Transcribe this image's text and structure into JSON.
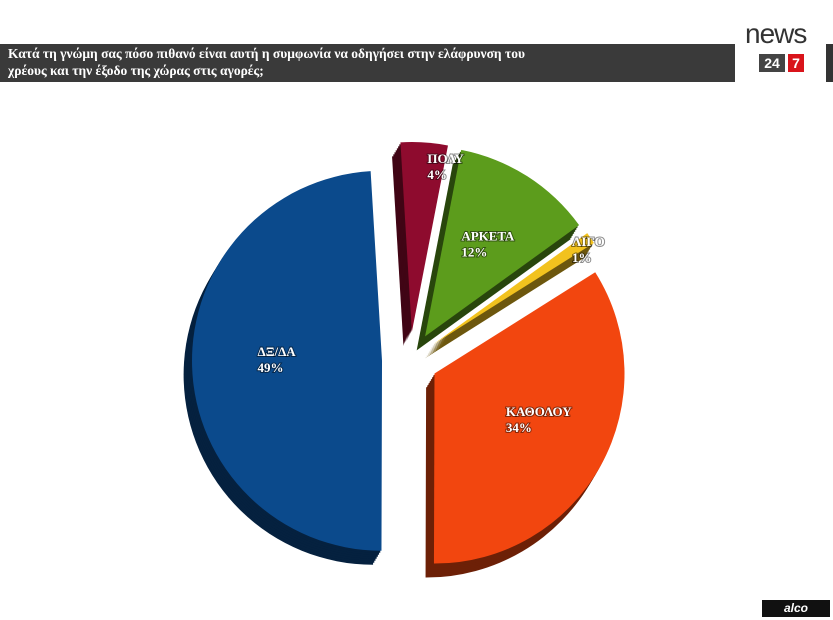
{
  "chart_data": {
    "type": "pie",
    "title": "Κατά τη γνώμη σας πόσο πιθανό είναι αυτή η συμφωνία να οδηγήσει στην ελάφρυνση του χρέους και την έξοδο της χώρας στις αγορές;",
    "categories": [
      "ΠΟΛΥ",
      "ΑΡΚΕΤΑ",
      "ΛΙΓΟ",
      "ΚΑΘΟΛΟΥ",
      "ΔΞ/ΔΑ"
    ],
    "values": [
      4,
      12,
      1,
      34,
      49
    ],
    "value_labels": [
      "4%",
      "12%",
      "1%",
      "34%",
      "49%"
    ],
    "colors": [
      "#8e0b2e",
      "#5c9c1c",
      "#f2c21e",
      "#f2460f",
      "#0b4a8c"
    ]
  },
  "brand": {
    "name": "news",
    "number": "24",
    "number_accent": "7"
  },
  "source": "alco"
}
